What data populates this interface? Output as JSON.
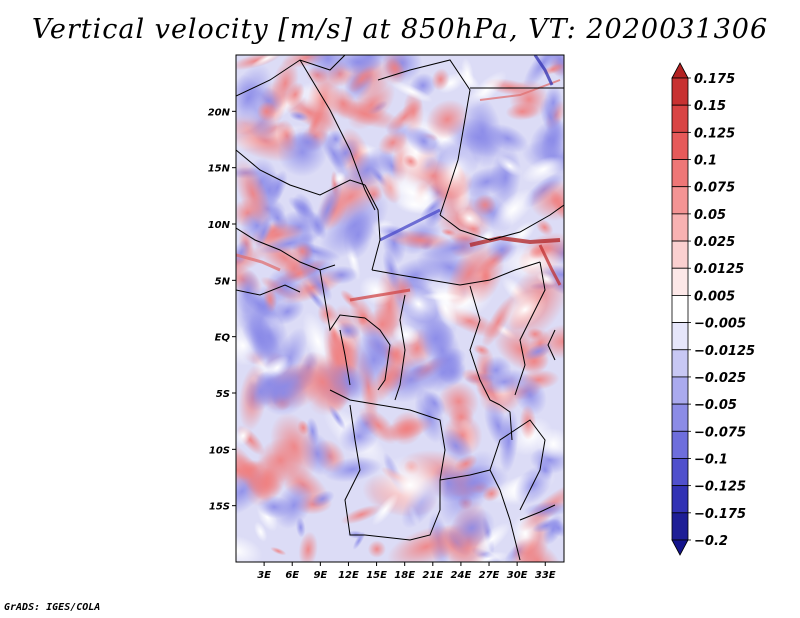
{
  "title": "Vertical velocity [m/s] at 850hPa, VT: 2020031306",
  "credit": "GrADS: IGES/COLA",
  "map": {
    "lon_range": [
      0,
      35
    ],
    "lat_range": [
      -20,
      25
    ],
    "x_ticks": [
      "3E",
      "6E",
      "9E",
      "12E",
      "15E",
      "18E",
      "21E",
      "24E",
      "27E",
      "30E",
      "33E"
    ],
    "y_ticks": [
      "20N",
      "15N",
      "10N",
      "5N",
      "EQ",
      "5S",
      "10S",
      "15S"
    ]
  },
  "colorbar": {
    "labels": [
      "0.175",
      "0.15",
      "0.125",
      "0.1",
      "0.075",
      "0.05",
      "0.025",
      "0.0125",
      "0.005",
      "−0.005",
      "−0.0125",
      "−0.025",
      "−0.05",
      "−0.075",
      "−0.1",
      "−0.125",
      "−0.175",
      "−0.2"
    ],
    "colors": [
      "#b22222",
      "#c83232",
      "#d84444",
      "#e65a5a",
      "#ee7777",
      "#f49494",
      "#f8b2b2",
      "#fbd0d0",
      "#fde8e8",
      "#ffffff",
      "#e6e6fa",
      "#c8c8f4",
      "#aaaaee",
      "#8c8ce6",
      "#6e6edc",
      "#5050cc",
      "#3232b4",
      "#1e1e96",
      "#14148c"
    ]
  }
}
